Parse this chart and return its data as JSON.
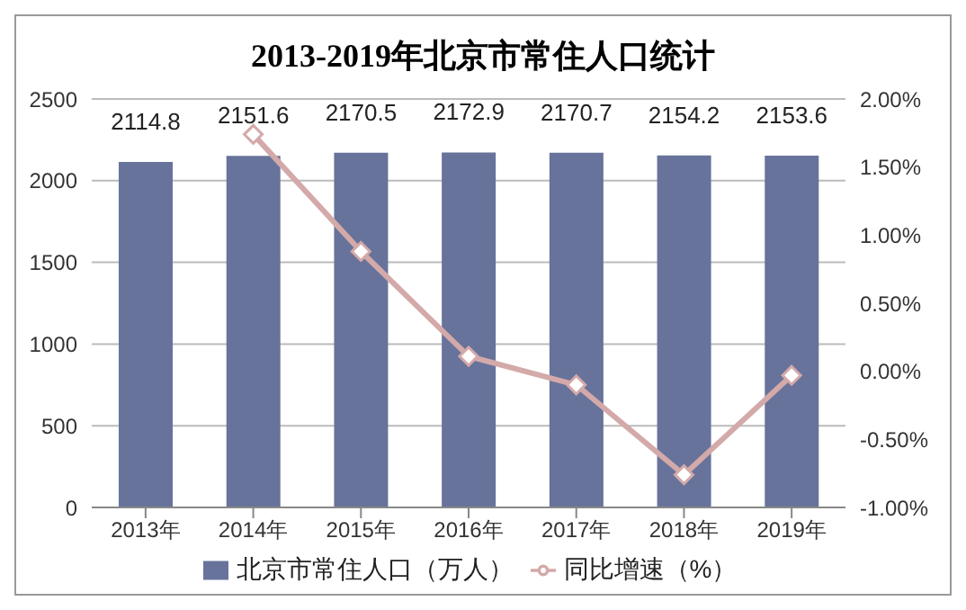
{
  "chart_data": {
    "type": "bar",
    "title": "2013-2019年北京市常住人口统计",
    "categories": [
      "2013年",
      "2014年",
      "2015年",
      "2016年",
      "2017年",
      "2018年",
      "2019年"
    ],
    "series": [
      {
        "name": "北京市常住人口（万人）",
        "color": "#67739a",
        "values": [
          2114.8,
          2151.6,
          2170.5,
          2172.9,
          2170.7,
          2154.2,
          2153.6
        ],
        "data_labels": true
      },
      {
        "name": "同比增速（%）",
        "type": "line",
        "axis": "y2",
        "color": "#d4a9a9",
        "marker": "diamond",
        "values": [
          null,
          1.74,
          0.88,
          0.11,
          -0.1,
          -0.76,
          -0.03
        ]
      }
    ],
    "ylim": [
      0,
      2500
    ],
    "yticks": [
      0,
      500,
      1000,
      1500,
      2000,
      2500
    ],
    "y2lim": [
      -1,
      2
    ],
    "y2ticks": [
      {
        "value": -1,
        "label": "-1.00%"
      },
      {
        "value": -0.5,
        "label": "-0.50%"
      },
      {
        "value": 0,
        "label": "0.00%"
      },
      {
        "value": 0.5,
        "label": "0.50%"
      },
      {
        "value": 1,
        "label": "1.00%"
      },
      {
        "value": 1.5,
        "label": "1.50%"
      },
      {
        "value": 2,
        "label": "2.00%"
      }
    ],
    "grid": "y",
    "legend": "bottom"
  }
}
